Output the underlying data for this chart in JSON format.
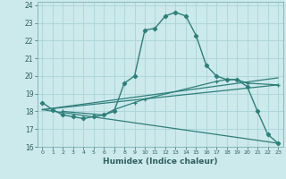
{
  "xlabel": "Humidex (Indice chaleur)",
  "xlim": [
    -0.5,
    23.5
  ],
  "ylim": [
    16,
    24.2
  ],
  "yticks": [
    16,
    17,
    18,
    19,
    20,
    21,
    22,
    23,
    24
  ],
  "xticks": [
    0,
    1,
    2,
    3,
    4,
    5,
    6,
    7,
    8,
    9,
    10,
    11,
    12,
    13,
    14,
    15,
    16,
    17,
    18,
    19,
    20,
    21,
    22,
    23
  ],
  "background_color": "#cce9ec",
  "grid_color": "#aad4d8",
  "line_color": "#2e7f7a",
  "curve1_x": [
    0,
    1,
    2,
    3,
    4,
    5,
    6,
    7,
    8,
    9,
    10,
    11,
    12,
    13,
    14,
    15,
    16,
    17,
    18,
    19,
    20,
    21,
    22,
    23
  ],
  "curve1_y": [
    18.5,
    18.1,
    17.8,
    17.7,
    17.6,
    17.7,
    17.8,
    18.0,
    19.6,
    20.0,
    22.6,
    22.7,
    23.4,
    23.6,
    23.4,
    22.3,
    20.6,
    20.0,
    19.8,
    19.8,
    19.4,
    18.0,
    16.7,
    16.2
  ],
  "curve2_x": [
    0,
    23
  ],
  "curve2_y": [
    18.1,
    19.9
  ],
  "curve3_x": [
    0,
    23
  ],
  "curve3_y": [
    18.1,
    16.2
  ],
  "curve4_x": [
    0,
    23
  ],
  "curve4_y": [
    18.1,
    19.5
  ],
  "curve5_x": [
    2,
    6,
    7,
    9,
    10,
    17,
    18,
    19,
    20,
    23
  ],
  "curve5_y": [
    18.0,
    17.8,
    18.1,
    18.5,
    18.7,
    19.7,
    19.8,
    19.8,
    19.6,
    19.5
  ]
}
